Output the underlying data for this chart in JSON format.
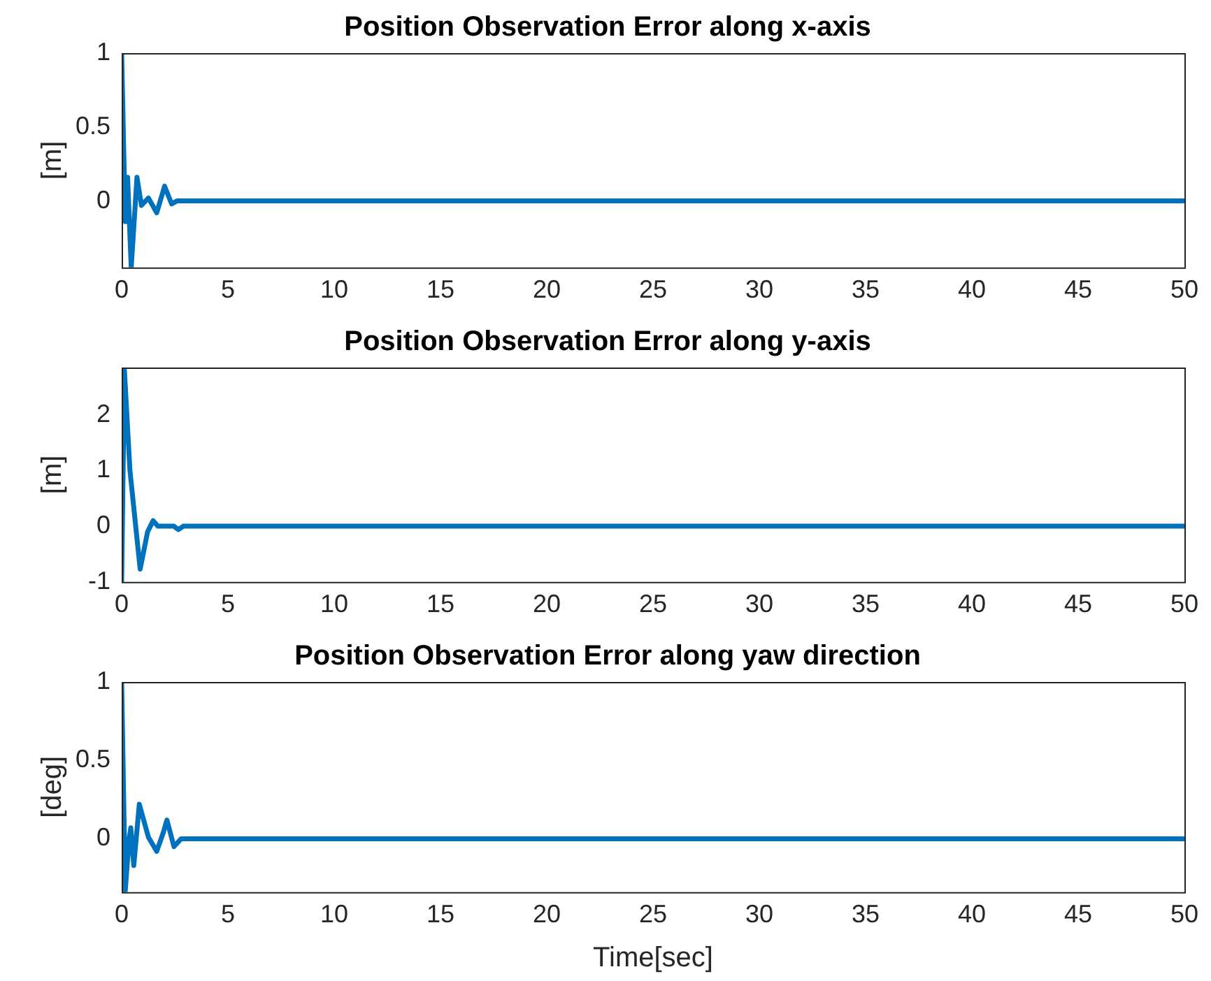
{
  "chart_data": [
    {
      "type": "line",
      "title": "Position Observation Error along x-axis",
      "ylabel": "[m]",
      "xlim": [
        0,
        50
      ],
      "xticks": [
        0,
        5,
        10,
        15,
        20,
        25,
        30,
        35,
        40,
        45,
        50
      ],
      "ylim": [
        -0.45,
        1
      ],
      "yticks": [
        0,
        0.5,
        1
      ],
      "grid": false,
      "legend": false,
      "marker": "none",
      "line_style": "solid",
      "series": [
        {
          "color": "#0072bd",
          "x": [
            0,
            0.17,
            0.28,
            0.45,
            0.72,
            0.93,
            1.26,
            1.65,
            2.02,
            2.35,
            2.6,
            50
          ],
          "values": [
            1,
            -0.14,
            0.16,
            -0.45,
            0.16,
            -0.03,
            0.02,
            -0.08,
            0.1,
            -0.02,
            0,
            0
          ]
        }
      ]
    },
    {
      "type": "line",
      "title": "Position Observation Error along y-axis",
      "ylabel": "[m]",
      "xlim": [
        0,
        50
      ],
      "xticks": [
        0,
        5,
        10,
        15,
        20,
        25,
        30,
        35,
        40,
        45,
        50
      ],
      "ylim": [
        -1,
        2.85
      ],
      "yticks": [
        -1,
        0,
        1,
        2
      ],
      "grid": false,
      "legend": false,
      "marker": "none",
      "line_style": "solid",
      "series": [
        {
          "color": "#0072bd",
          "x": [
            0,
            0.13,
            0.39,
            0.87,
            1.22,
            1.48,
            1.7,
            2.46,
            2.67,
            2.9,
            50
          ],
          "values": [
            -1,
            2.8,
            1.0,
            -0.77,
            -0.1,
            0.1,
            0,
            0,
            -0.06,
            0,
            0
          ]
        }
      ]
    },
    {
      "type": "line",
      "title": "Position Observation Error along yaw direction",
      "xlabel": "Time[sec]",
      "ylabel": "[deg]",
      "xlim": [
        0,
        50
      ],
      "xticks": [
        0,
        5,
        10,
        15,
        20,
        25,
        30,
        35,
        40,
        45,
        50
      ],
      "ylim": [
        -0.34,
        1
      ],
      "yticks": [
        0,
        0.5,
        1
      ],
      "grid": false,
      "legend": false,
      "marker": "none",
      "line_style": "solid",
      "series": [
        {
          "color": "#0072bd",
          "x": [
            0,
            0.17,
            0.35,
            0.43,
            0.57,
            0.83,
            1.26,
            1.65,
            1.96,
            2.13,
            2.46,
            2.8,
            50
          ],
          "values": [
            1,
            -0.33,
            0,
            0.07,
            -0.17,
            0.22,
            0.01,
            -0.08,
            0.04,
            0.12,
            -0.05,
            0,
            0
          ]
        }
      ]
    }
  ]
}
